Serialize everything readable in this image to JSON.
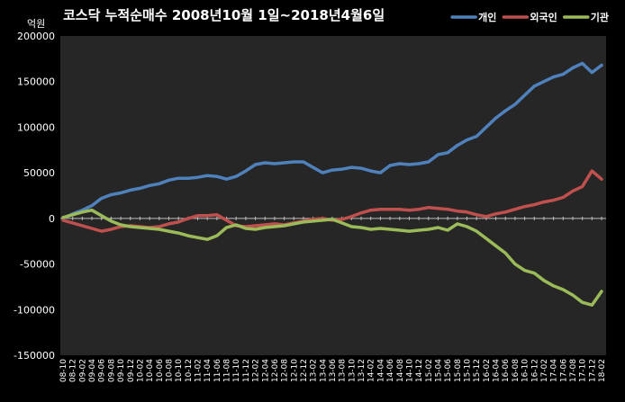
{
  "chart_data": {
    "type": "line",
    "title": "코스닥 누적순매수 2008년10월 1일~2018년4월6일",
    "unit_label": "억원",
    "ylim": [
      -150000,
      200000
    ],
    "yticks": [
      "200000",
      "150000",
      "100000",
      "50000",
      "0",
      "-50000",
      "-100000",
      "-150000"
    ],
    "ytick_values": [
      200000,
      150000,
      100000,
      50000,
      0,
      -50000,
      -100000,
      -150000
    ],
    "grid": false,
    "legend_position": "top-right",
    "x": [
      "08-10",
      "08-12",
      "09-02",
      "09-04",
      "09-06",
      "09-08",
      "09-10",
      "09-12",
      "10-02",
      "10-04",
      "10-06",
      "10-08",
      "10-10",
      "10-12",
      "11-02",
      "11-04",
      "11-06",
      "11-08",
      "11-10",
      "11-12",
      "12-02",
      "12-04",
      "12-06",
      "12-08",
      "12-10",
      "12-12",
      "13-02",
      "13-04",
      "13-06",
      "13-08",
      "13-10",
      "13-12",
      "14-02",
      "14-04",
      "14-06",
      "14-08",
      "14-10",
      "14-12",
      "15-02",
      "15-04",
      "15-06",
      "15-08",
      "15-10",
      "15-12",
      "16-02",
      "16-04",
      "16-06",
      "16-08",
      "16-10",
      "16-12",
      "17-02",
      "17-04",
      "17-06",
      "17-08",
      "17-10",
      "17-12",
      "18-02"
    ],
    "series": [
      {
        "name": "개인",
        "color": "#4f81bd",
        "values": [
          0,
          5000,
          9000,
          14000,
          22000,
          26000,
          28000,
          31000,
          33000,
          36000,
          38000,
          42000,
          44000,
          44000,
          45000,
          47000,
          46000,
          43000,
          46000,
          52000,
          59000,
          61000,
          60000,
          61000,
          62000,
          62000,
          56000,
          50000,
          53000,
          54000,
          56000,
          55000,
          52000,
          50000,
          58000,
          60000,
          59000,
          60000,
          62000,
          70000,
          72000,
          80000,
          86000,
          90000,
          100000,
          110000,
          118000,
          125000,
          135000,
          145000,
          150000,
          155000,
          158000,
          165000,
          170000,
          160000,
          168000
        ]
      },
      {
        "name": "외국인",
        "color": "#c0504d",
        "values": [
          -2000,
          -5000,
          -8000,
          -11000,
          -14000,
          -12000,
          -9000,
          -8000,
          -9000,
          -10000,
          -9000,
          -6000,
          -4000,
          0,
          3000,
          3000,
          4000,
          -2000,
          -8000,
          -9000,
          -8000,
          -7000,
          -6000,
          -7000,
          -5000,
          -3000,
          -1000,
          0,
          -2000,
          -1000,
          2000,
          6000,
          9000,
          10000,
          10000,
          10000,
          9000,
          10000,
          12000,
          11000,
          10000,
          8000,
          7000,
          4000,
          2000,
          5000,
          7000,
          10000,
          13000,
          15000,
          18000,
          20000,
          23000,
          30000,
          35000,
          52000,
          43000
        ]
      },
      {
        "name": "기관",
        "color": "#9bbb59",
        "values": [
          1000,
          4000,
          7000,
          9000,
          3000,
          -3000,
          -7000,
          -9000,
          -10000,
          -11000,
          -12000,
          -14000,
          -16000,
          -19000,
          -21000,
          -23000,
          -19000,
          -10000,
          -7000,
          -11000,
          -12000,
          -10000,
          -9000,
          -8000,
          -6000,
          -4000,
          -3000,
          -2000,
          -1000,
          -5000,
          -9000,
          -10000,
          -12000,
          -11000,
          -12000,
          -13000,
          -14000,
          -13000,
          -12000,
          -10000,
          -13000,
          -6000,
          -9000,
          -14000,
          -22000,
          -30000,
          -38000,
          -50000,
          -57000,
          -60000,
          -68000,
          -74000,
          -78000,
          -84000,
          -92000,
          -95000,
          -80000
        ]
      }
    ]
  }
}
